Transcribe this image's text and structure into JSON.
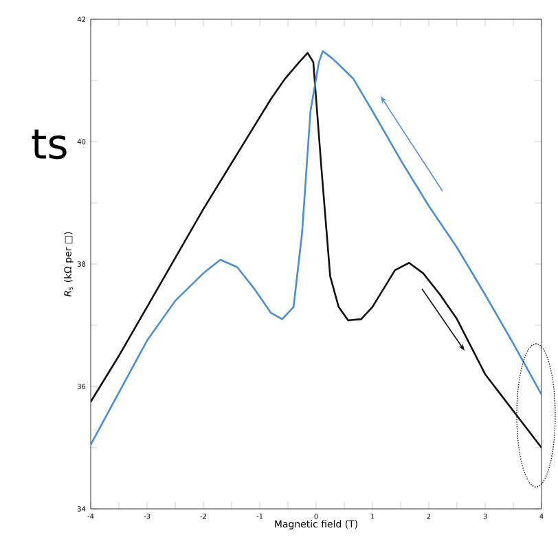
{
  "chart_data": {
    "type": "line",
    "xlabel": "Magnetic field (T)",
    "ylabel": "*R*$_{s}$ (kΩ per □)",
    "xlim": [
      -4,
      4
    ],
    "ylim": [
      34,
      42
    ],
    "xticks": [
      -4,
      {
        "value": -3.5,
        "label": null
      },
      -3,
      {
        "value": -2.5,
        "label": null
      },
      -2,
      {
        "value": -1.5,
        "label": null
      },
      -1,
      {
        "value": -0.5,
        "label": null
      },
      0,
      {
        "value": 0.5,
        "label": null
      },
      1,
      {
        "value": 1.5,
        "label": null
      },
      2,
      {
        "value": 2.5,
        "label": null
      },
      3,
      {
        "value": 3.5,
        "label": null
      },
      4
    ],
    "yticks": [
      34,
      {
        "value": 35,
        "label": null
      },
      36,
      {
        "value": 37,
        "label": null
      },
      38,
      {
        "value": 39,
        "label": null
      },
      40,
      {
        "value": 41,
        "label": null
      },
      42
    ],
    "grid": false,
    "marker": "none",
    "line_style": "solid",
    "annotations": [
      "ts"
    ],
    "series": [
      {
        "color": "#111111",
        "x": [
          -4,
          -3.5,
          -3,
          -2.5,
          -2,
          -1.6,
          -1.2,
          -0.8,
          -0.55,
          -0.3,
          -0.15,
          -0.05,
          0.1,
          0.25,
          0.4,
          0.57,
          0.8,
          1.0,
          1.2,
          1.4,
          1.65,
          1.9,
          2.2,
          2.5,
          3.0,
          3.5,
          4.0
        ],
        "values": [
          35.75,
          36.5,
          37.3,
          38.1,
          38.9,
          39.5,
          40.1,
          40.7,
          41.03,
          41.3,
          41.45,
          41.3,
          39.5,
          37.8,
          37.3,
          37.08,
          37.1,
          37.3,
          37.6,
          37.9,
          38.02,
          37.85,
          37.5,
          37.1,
          36.2,
          35.6,
          35.0
        ]
      },
      {
        "color": "#4a8fd6",
        "x": [
          -4,
          -3.5,
          -3,
          -2.5,
          -2,
          -1.7,
          -1.4,
          -1.1,
          -0.8,
          -0.6,
          -0.4,
          -0.25,
          -0.1,
          0.05,
          0.12,
          0.3,
          0.66,
          1.0,
          1.5,
          2.0,
          2.5,
          3.0,
          3.5,
          4.0
        ],
        "values": [
          35.05,
          35.9,
          36.75,
          37.4,
          37.85,
          38.07,
          37.95,
          37.6,
          37.2,
          37.1,
          37.3,
          38.5,
          40.5,
          41.3,
          41.48,
          41.35,
          41.03,
          40.5,
          39.7,
          38.95,
          38.27,
          37.5,
          36.7,
          35.87
        ]
      }
    ]
  }
}
